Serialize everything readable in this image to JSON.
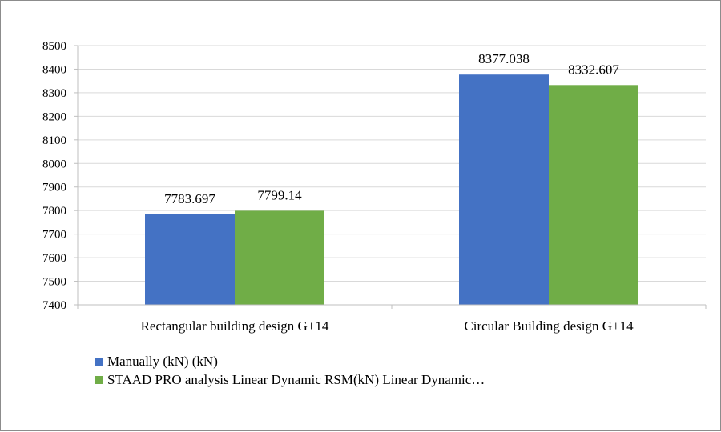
{
  "chart_data": {
    "type": "bar",
    "title": "",
    "xlabel": "",
    "ylabel": "",
    "categories": [
      "Rectangular building design G+14",
      "Circular Building design G+14"
    ],
    "series": [
      {
        "name": "Manually (kN) (kN)",
        "values": [
          7783.697,
          8377.038
        ],
        "labels": [
          "7783.697",
          "8377.038"
        ],
        "color": "#4472c4"
      },
      {
        "name": "STAAD PRO analysis Linear Dynamic RSM(kN) Linear Dynamic…",
        "values": [
          7799.14,
          8332.607
        ],
        "labels": [
          "7799.14",
          "8332.607"
        ],
        "color": "#70ad47"
      }
    ],
    "ylim": [
      7400,
      8500
    ],
    "yticks": [
      7400,
      7500,
      7600,
      7700,
      7800,
      7900,
      8000,
      8100,
      8200,
      8300,
      8400,
      8500
    ],
    "grid": true,
    "legend_position": "bottom-left"
  }
}
